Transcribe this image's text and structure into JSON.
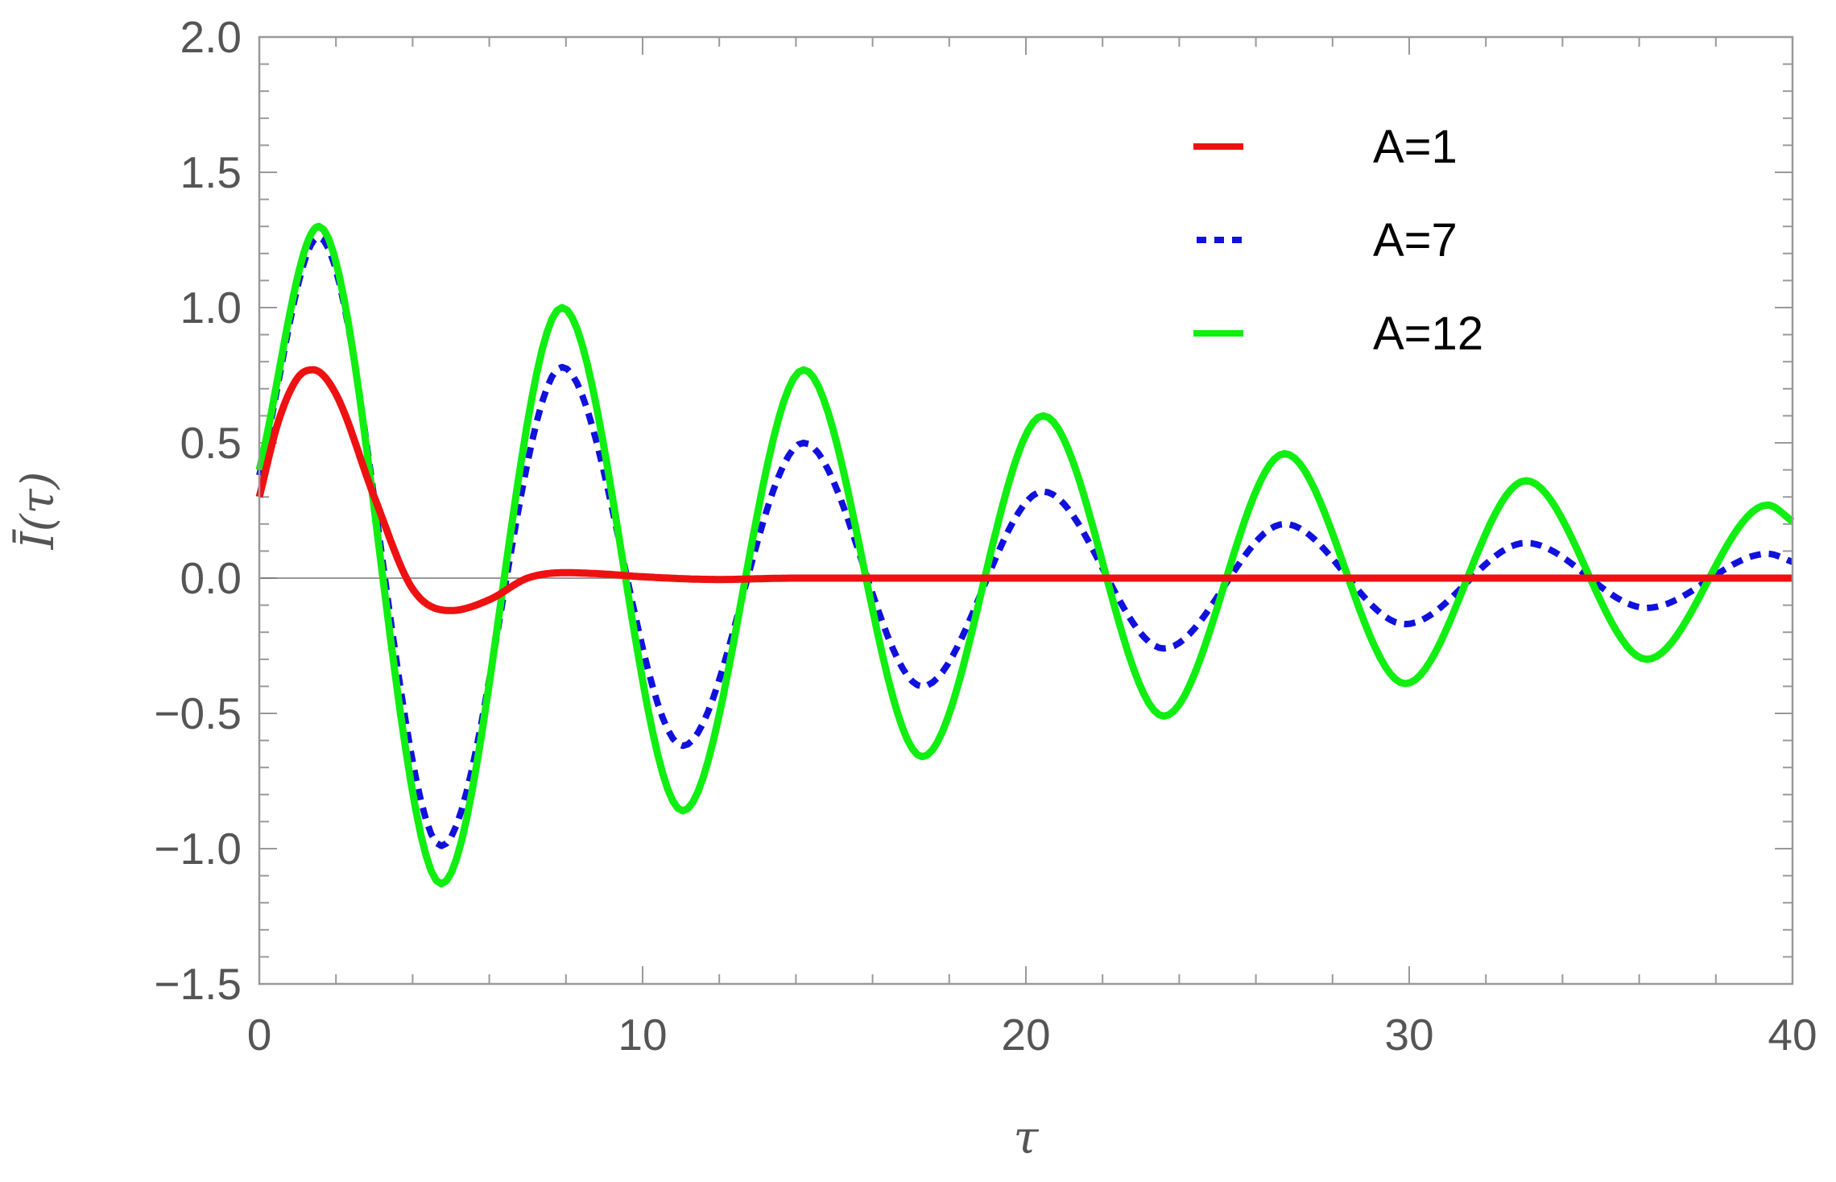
{
  "chart_data": {
    "type": "line",
    "title": "",
    "xlabel": "τ",
    "ylabel": "Ī(τ)",
    "xlim": [
      0,
      40
    ],
    "ylim": [
      -1.5,
      2.0
    ],
    "x_ticks": [
      0,
      10,
      20,
      30,
      40
    ],
    "x_tick_labels": [
      "0",
      "10",
      "20",
      "30",
      "40"
    ],
    "y_ticks": [
      -1.5,
      -1.0,
      -0.5,
      0.0,
      0.5,
      1.0,
      1.5,
      2.0
    ],
    "y_tick_labels": [
      "−1.5",
      "−1.0",
      "−0.5",
      "0.0",
      "0.5",
      "1.0",
      "1.5",
      "2.0"
    ],
    "grid": false,
    "zero_line": true,
    "legend_position": "top-right",
    "series": [
      {
        "name": "A=1",
        "color": "#ee1111",
        "style": "solid",
        "points": [
          [
            0,
            0.3
          ],
          [
            0.5,
            0.58
          ],
          [
            1,
            0.74
          ],
          [
            1.4,
            0.77
          ],
          [
            2,
            0.68
          ],
          [
            3,
            0.3
          ],
          [
            4,
            -0.04
          ],
          [
            5,
            -0.12
          ],
          [
            6,
            -0.08
          ],
          [
            7,
            0.0
          ],
          [
            8,
            0.02
          ],
          [
            9,
            0.015
          ],
          [
            10,
            0.005
          ],
          [
            12,
            -0.005
          ],
          [
            14,
            0
          ],
          [
            20,
            0
          ],
          [
            30,
            0
          ],
          [
            40,
            0
          ]
        ]
      },
      {
        "name": "A=7",
        "color": "#1111dd",
        "style": "dotted",
        "points": [
          [
            0,
            0.38
          ],
          [
            1.55,
            1.26
          ],
          [
            4.75,
            -0.99
          ],
          [
            7.9,
            0.78
          ],
          [
            11.05,
            -0.62
          ],
          [
            14.2,
            0.5
          ],
          [
            17.3,
            -0.4
          ],
          [
            20.45,
            0.32
          ],
          [
            23.6,
            -0.26
          ],
          [
            26.75,
            0.2
          ],
          [
            29.9,
            -0.17
          ],
          [
            33.05,
            0.13
          ],
          [
            36.2,
            -0.11
          ],
          [
            39.35,
            0.09
          ],
          [
            40,
            0.06
          ]
        ]
      },
      {
        "name": "A=12",
        "color": "#11ee11",
        "style": "solid",
        "points": [
          [
            0,
            0.4
          ],
          [
            1.55,
            1.3
          ],
          [
            4.75,
            -1.13
          ],
          [
            7.9,
            1.0
          ],
          [
            11.05,
            -0.86
          ],
          [
            14.2,
            0.77
          ],
          [
            17.3,
            -0.66
          ],
          [
            20.45,
            0.6
          ],
          [
            23.6,
            -0.51
          ],
          [
            26.75,
            0.46
          ],
          [
            29.9,
            -0.39
          ],
          [
            33.05,
            0.36
          ],
          [
            36.2,
            -0.3
          ],
          [
            39.35,
            0.27
          ],
          [
            40,
            0.21
          ]
        ]
      }
    ]
  }
}
